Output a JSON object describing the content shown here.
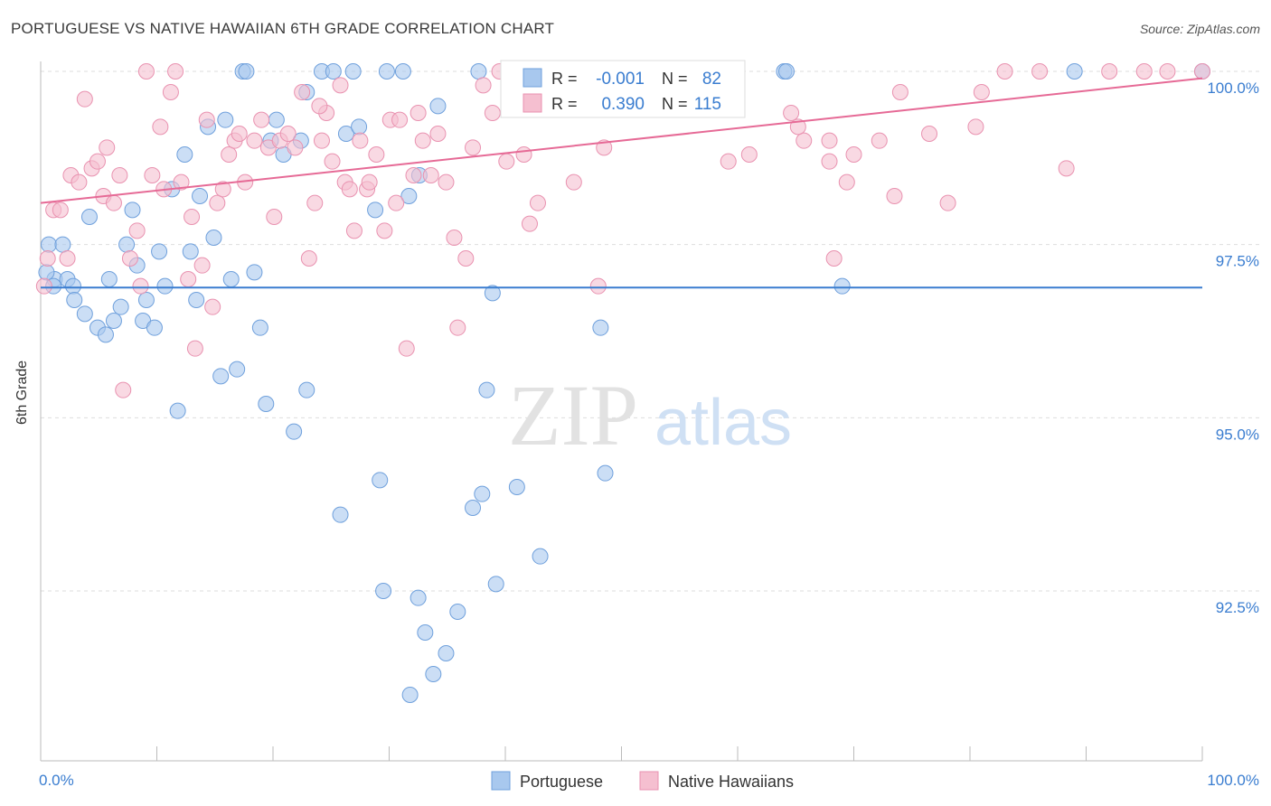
{
  "title": "PORTUGUESE VS NATIVE HAWAIIAN 6TH GRADE CORRELATION CHART",
  "source": "Source: ZipAtlas.com",
  "watermark": {
    "zip": "ZIP",
    "atlas": "atlas"
  },
  "colors": {
    "blue_fill": "#a8c8ee",
    "blue_stroke": "#6fa0dc",
    "blue_line": "#3a7dd0",
    "pink_fill": "#f5bfd0",
    "pink_stroke": "#e992b0",
    "pink_line": "#e66a96",
    "value_text": "#3a7dd0",
    "grid": "#dddddd"
  },
  "chart_data": {
    "type": "scatter",
    "title": "PORTUGUESE VS NATIVE HAWAIIAN 6TH GRADE CORRELATION CHART",
    "xlabel": "",
    "ylabel": "6th Grade",
    "xlim": [
      0,
      100
    ],
    "ylim": [
      89.8,
      100.4
    ],
    "x_tick_labels": [
      "0.0%",
      "100.0%"
    ],
    "y_ticks": [
      92.5,
      95.0,
      97.5,
      100.0
    ],
    "y_tick_labels": [
      "92.5%",
      "95.0%",
      "97.5%",
      "100.0%"
    ],
    "grid": true,
    "legend_position": "bottom-center",
    "legend": [
      {
        "name": "Portuguese",
        "r_label": "R =",
        "r_value": "-0.001",
        "n_label": "N =",
        "n_value": "82"
      },
      {
        "name": "Native Hawaiians",
        "r_label": "R =",
        "r_value": "0.390",
        "n_label": "N =",
        "n_value": "115"
      }
    ],
    "series": [
      {
        "name": "Portuguese",
        "trend": {
          "x": [
            0,
            100
          ],
          "y": [
            96.88,
            96.88
          ]
        },
        "points": [
          [
            0.7,
            97.5
          ],
          [
            1.2,
            97.0
          ],
          [
            1.9,
            97.5
          ],
          [
            2.3,
            97.0
          ],
          [
            2.8,
            96.9
          ],
          [
            2.9,
            96.7
          ],
          [
            3.8,
            96.5
          ],
          [
            4.2,
            97.9
          ],
          [
            4.9,
            96.3
          ],
          [
            5.6,
            96.2
          ],
          [
            5.9,
            97.0
          ],
          [
            6.3,
            96.4
          ],
          [
            6.9,
            96.6
          ],
          [
            7.4,
            97.5
          ],
          [
            7.9,
            98.0
          ],
          [
            8.3,
            97.2
          ],
          [
            8.8,
            96.4
          ],
          [
            9.1,
            96.7
          ],
          [
            9.8,
            96.3
          ],
          [
            10.2,
            97.4
          ],
          [
            10.7,
            96.9
          ],
          [
            11.3,
            98.3
          ],
          [
            11.8,
            95.1
          ],
          [
            12.4,
            98.8
          ],
          [
            12.9,
            97.4
          ],
          [
            13.4,
            96.7
          ],
          [
            13.7,
            98.2
          ],
          [
            14.4,
            99.2
          ],
          [
            14.9,
            97.6
          ],
          [
            15.5,
            95.6
          ],
          [
            15.9,
            99.3
          ],
          [
            16.4,
            97.0
          ],
          [
            16.9,
            95.7
          ],
          [
            17.4,
            100.0
          ],
          [
            17.7,
            100.0
          ],
          [
            18.4,
            97.1
          ],
          [
            18.9,
            96.3
          ],
          [
            19.4,
            95.2
          ],
          [
            19.8,
            99.0
          ],
          [
            20.3,
            99.3
          ],
          [
            20.9,
            98.8
          ],
          [
            21.8,
            94.8
          ],
          [
            22.4,
            99.0
          ],
          [
            22.9,
            95.4
          ],
          [
            22.9,
            99.7
          ],
          [
            24.2,
            100.0
          ],
          [
            25.2,
            100.0
          ],
          [
            25.8,
            93.6
          ],
          [
            26.3,
            99.1
          ],
          [
            26.9,
            100.0
          ],
          [
            27.4,
            99.2
          ],
          [
            28.8,
            98.0
          ],
          [
            29.2,
            94.1
          ],
          [
            29.5,
            92.5
          ],
          [
            29.8,
            100.0
          ],
          [
            31.2,
            100.0
          ],
          [
            31.7,
            98.2
          ],
          [
            31.8,
            91.0
          ],
          [
            32.5,
            92.4
          ],
          [
            32.6,
            98.5
          ],
          [
            33.1,
            91.9
          ],
          [
            33.8,
            91.3
          ],
          [
            34.2,
            99.5
          ],
          [
            34.9,
            91.6
          ],
          [
            35.9,
            92.2
          ],
          [
            37.2,
            93.7
          ],
          [
            37.7,
            100.0
          ],
          [
            38.0,
            93.9
          ],
          [
            38.4,
            95.4
          ],
          [
            38.9,
            96.8
          ],
          [
            39.2,
            92.6
          ],
          [
            41.0,
            94.0
          ],
          [
            43.0,
            93.0
          ],
          [
            48.2,
            96.3
          ],
          [
            48.6,
            94.2
          ],
          [
            69.0,
            96.9
          ],
          [
            64.0,
            100.0
          ],
          [
            64.2,
            100.0
          ],
          [
            89.0,
            100.0
          ],
          [
            100.0,
            100.0
          ],
          [
            0.5,
            97.1
          ],
          [
            1.1,
            96.9
          ]
        ]
      },
      {
        "name": "Native Hawaiians",
        "trend": {
          "x": [
            0,
            100
          ],
          "y": [
            98.1,
            99.9
          ]
        },
        "points": [
          [
            0.6,
            97.3
          ],
          [
            1.1,
            98.0
          ],
          [
            1.7,
            98.0
          ],
          [
            2.3,
            97.3
          ],
          [
            2.6,
            98.5
          ],
          [
            3.3,
            98.4
          ],
          [
            3.8,
            99.6
          ],
          [
            4.4,
            98.6
          ],
          [
            4.9,
            98.7
          ],
          [
            5.4,
            98.2
          ],
          [
            5.7,
            98.9
          ],
          [
            6.3,
            98.1
          ],
          [
            6.8,
            98.5
          ],
          [
            7.1,
            95.4
          ],
          [
            7.7,
            97.3
          ],
          [
            8.3,
            97.7
          ],
          [
            8.6,
            96.9
          ],
          [
            9.1,
            100.0
          ],
          [
            9.6,
            98.5
          ],
          [
            10.3,
            99.2
          ],
          [
            10.6,
            98.3
          ],
          [
            11.2,
            99.7
          ],
          [
            11.6,
            100.0
          ],
          [
            12.1,
            98.4
          ],
          [
            12.7,
            97.0
          ],
          [
            13.0,
            97.9
          ],
          [
            13.3,
            96.0
          ],
          [
            13.9,
            97.2
          ],
          [
            14.3,
            99.3
          ],
          [
            14.8,
            96.6
          ],
          [
            15.2,
            98.1
          ],
          [
            15.7,
            98.3
          ],
          [
            16.2,
            98.8
          ],
          [
            16.7,
            99.0
          ],
          [
            17.1,
            99.1
          ],
          [
            17.6,
            98.4
          ],
          [
            18.4,
            99.0
          ],
          [
            19.0,
            99.3
          ],
          [
            19.6,
            98.9
          ],
          [
            20.1,
            97.9
          ],
          [
            20.6,
            99.0
          ],
          [
            21.3,
            99.1
          ],
          [
            21.9,
            98.9
          ],
          [
            22.5,
            99.7
          ],
          [
            23.1,
            97.3
          ],
          [
            23.6,
            98.1
          ],
          [
            24.2,
            99.0
          ],
          [
            24.6,
            99.4
          ],
          [
            25.1,
            98.7
          ],
          [
            25.8,
            99.8
          ],
          [
            26.2,
            98.4
          ],
          [
            26.6,
            98.3
          ],
          [
            27.0,
            97.7
          ],
          [
            27.5,
            99.0
          ],
          [
            28.1,
            98.3
          ],
          [
            28.3,
            98.4
          ],
          [
            28.9,
            98.8
          ],
          [
            29.6,
            97.7
          ],
          [
            30.1,
            99.3
          ],
          [
            30.6,
            98.1
          ],
          [
            30.9,
            99.3
          ],
          [
            31.5,
            96.0
          ],
          [
            32.1,
            98.5
          ],
          [
            32.5,
            99.4
          ],
          [
            32.9,
            99.0
          ],
          [
            33.6,
            98.5
          ],
          [
            34.2,
            99.1
          ],
          [
            34.9,
            98.4
          ],
          [
            35.6,
            97.6
          ],
          [
            35.9,
            96.3
          ],
          [
            36.6,
            97.3
          ],
          [
            37.2,
            98.9
          ],
          [
            38.1,
            99.8
          ],
          [
            38.9,
            99.4
          ],
          [
            39.5,
            100.0
          ],
          [
            40.1,
            98.7
          ],
          [
            40.9,
            100.0
          ],
          [
            41.6,
            98.8
          ],
          [
            42.1,
            97.8
          ],
          [
            42.8,
            98.1
          ],
          [
            43.6,
            100.0
          ],
          [
            46.9,
            100.0
          ],
          [
            48.5,
            98.9
          ],
          [
            51.0,
            100.0
          ],
          [
            54.0,
            100.0
          ],
          [
            55.5,
            100.0
          ],
          [
            59.2,
            98.7
          ],
          [
            61.0,
            98.8
          ],
          [
            64.6,
            99.4
          ],
          [
            65.7,
            99.0
          ],
          [
            65.2,
            99.2
          ],
          [
            67.9,
            99.0
          ],
          [
            68.3,
            97.3
          ],
          [
            67.9,
            98.7
          ],
          [
            69.4,
            98.4
          ],
          [
            70.0,
            98.8
          ],
          [
            72.2,
            99.0
          ],
          [
            73.5,
            98.2
          ],
          [
            76.5,
            99.1
          ],
          [
            78.1,
            98.1
          ],
          [
            80.5,
            99.2
          ],
          [
            81.0,
            99.7
          ],
          [
            83.0,
            100.0
          ],
          [
            86.0,
            100.0
          ],
          [
            88.3,
            98.6
          ],
          [
            92.0,
            100.0
          ],
          [
            95.0,
            100.0
          ],
          [
            97.0,
            100.0
          ],
          [
            100.0,
            100.0
          ],
          [
            0.3,
            96.9
          ],
          [
            24.0,
            99.5
          ],
          [
            48.0,
            96.9
          ],
          [
            74.0,
            99.7
          ],
          [
            56.2,
            100.0
          ],
          [
            45.9,
            98.4
          ]
        ]
      }
    ]
  }
}
